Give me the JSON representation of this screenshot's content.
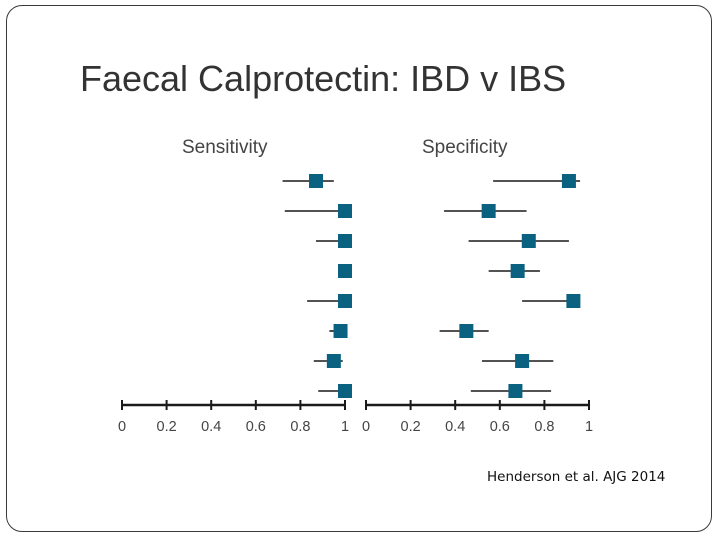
{
  "slide": {
    "title": "Faecal Calprotectin: IBD v IBS",
    "citation": "Henderson et al. AJG 2014"
  },
  "chart_data": {
    "type": "forest",
    "colors": {
      "marker": "#0b6280",
      "line": "#1a1a1a",
      "text": "#444444"
    },
    "panels": [
      {
        "name": "Sensitivity",
        "xlim": [
          0,
          1
        ],
        "ticks": [
          0,
          0.2,
          0.4,
          0.6,
          0.8,
          1
        ],
        "tick_labels": [
          "0",
          "0.2",
          "0.4",
          "0.6",
          "0.8",
          "1"
        ],
        "studies": [
          {
            "estimate": 0.87,
            "lower": 0.72,
            "upper": 0.95
          },
          {
            "estimate": 1.0,
            "lower": 0.73,
            "upper": 1.0
          },
          {
            "estimate": 1.0,
            "lower": 0.87,
            "upper": 1.0
          },
          {
            "estimate": 1.0,
            "lower": 0.97,
            "upper": 1.0
          },
          {
            "estimate": 1.0,
            "lower": 0.83,
            "upper": 1.0
          },
          {
            "estimate": 0.98,
            "lower": 0.93,
            "upper": 1.0
          },
          {
            "estimate": 0.95,
            "lower": 0.86,
            "upper": 0.99
          },
          {
            "estimate": 1.0,
            "lower": 0.88,
            "upper": 1.0
          }
        ]
      },
      {
        "name": "Specificity",
        "xlim": [
          0,
          1
        ],
        "ticks": [
          0,
          0.2,
          0.4,
          0.6,
          0.8,
          1
        ],
        "tick_labels": [
          "0",
          "0.2",
          "0.4",
          "0.6",
          "0.8",
          "1"
        ],
        "studies": [
          {
            "estimate": 0.91,
            "lower": 0.57,
            "upper": 0.96
          },
          {
            "estimate": 0.55,
            "lower": 0.35,
            "upper": 0.72
          },
          {
            "estimate": 0.73,
            "lower": 0.46,
            "upper": 0.91
          },
          {
            "estimate": 0.68,
            "lower": 0.55,
            "upper": 0.78
          },
          {
            "estimate": 0.93,
            "lower": 0.7,
            "upper": 0.96
          },
          {
            "estimate": 0.45,
            "lower": 0.33,
            "upper": 0.55
          },
          {
            "estimate": 0.7,
            "lower": 0.52,
            "upper": 0.84
          },
          {
            "estimate": 0.67,
            "lower": 0.47,
            "upper": 0.83
          }
        ]
      }
    ]
  }
}
